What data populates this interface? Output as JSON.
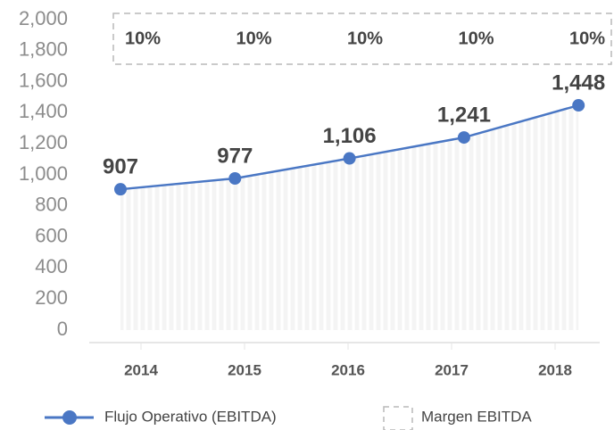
{
  "chart_data": {
    "type": "line",
    "categories": [
      "2014",
      "2015",
      "2016",
      "2017",
      "2018"
    ],
    "series": [
      {
        "name": "Flujo Operativo (EBITDA)",
        "color": "#4a77c4",
        "values": [
          907,
          977,
          1106,
          1241,
          1448
        ],
        "value_labels": [
          "907",
          "977",
          "1,106",
          "1,241",
          "1,448"
        ]
      },
      {
        "name": "Margen EBITDA",
        "color": "#b8b8b8",
        "values": [
          10,
          10,
          10,
          10,
          10
        ],
        "value_labels": [
          "10%",
          "10%",
          "10%",
          "10%",
          "10%"
        ]
      }
    ],
    "ylim": [
      0,
      2000
    ],
    "yticks": [
      0,
      200,
      400,
      600,
      800,
      {
        "value": 1000,
        "label": "1,000"
      },
      {
        "value": 1200,
        "label": "1,200"
      },
      {
        "value": 1400,
        "label": "1,400"
      },
      {
        "value": 1600,
        "label": "1,600"
      },
      {
        "value": 1800,
        "label": "1,800"
      },
      {
        "value": 2000,
        "label": "2,000"
      }
    ],
    "legend": "bottom"
  }
}
